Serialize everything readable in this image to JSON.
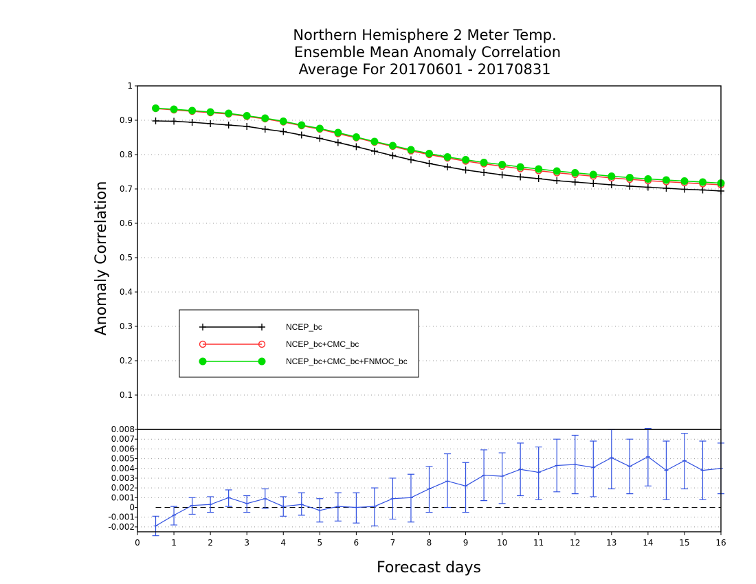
{
  "chart_data": {
    "type": "line",
    "title": [
      "Northern Hemisphere 2 Meter Temp.",
      "Ensemble Mean Anomaly Correlation",
      "Average For 20170601 - 20170831"
    ],
    "xlabel": "Forecast days",
    "ylabel": "Anomaly Correlation",
    "xlim": [
      0,
      16
    ],
    "ylim": [
      0,
      1
    ],
    "grid": "dotted-horizontal",
    "legend_position": "lower-left",
    "x_ticks": [
      "0",
      "1",
      "2",
      "3",
      "4",
      "5",
      "6",
      "7",
      "8",
      "9",
      "10",
      "11",
      "12",
      "13",
      "14",
      "15",
      "16"
    ],
    "y_ticks": [
      "0.1",
      "0.2",
      "0.3",
      "0.4",
      "0.5",
      "0.6",
      "0.7",
      "0.8",
      "0.9",
      "1"
    ],
    "x": [
      0.5,
      1,
      1.5,
      2,
      2.5,
      3,
      3.5,
      4,
      4.5,
      5,
      5.5,
      6,
      6.5,
      7,
      7.5,
      8,
      8.5,
      9,
      9.5,
      10,
      10.5,
      11,
      11.5,
      12,
      12.5,
      13,
      13.5,
      14,
      14.5,
      15,
      15.5,
      16
    ],
    "series": [
      {
        "name": "NCEP_bc",
        "color": "#000000",
        "marker": "plus",
        "values": [
          0.898,
          0.897,
          0.894,
          0.89,
          0.886,
          0.882,
          0.874,
          0.867,
          0.857,
          0.847,
          0.835,
          0.823,
          0.81,
          0.797,
          0.785,
          0.774,
          0.764,
          0.755,
          0.748,
          0.741,
          0.735,
          0.73,
          0.724,
          0.72,
          0.716,
          0.712,
          0.708,
          0.705,
          0.702,
          0.699,
          0.697,
          0.694
        ]
      },
      {
        "name": "NCEP_bc+CMC_bc",
        "color": "#ff3030",
        "marker": "open-circle",
        "values": [
          0.934,
          0.93,
          0.926,
          0.922,
          0.918,
          0.911,
          0.904,
          0.895,
          0.884,
          0.874,
          0.861,
          0.849,
          0.836,
          0.824,
          0.811,
          0.8,
          0.79,
          0.781,
          0.773,
          0.766,
          0.759,
          0.753,
          0.747,
          0.742,
          0.737,
          0.732,
          0.728,
          0.724,
          0.721,
          0.718,
          0.715,
          0.712
        ]
      },
      {
        "name": "NCEP_bc+CMC_bc+FNMOC_bc",
        "color": "#00dd00",
        "marker": "filled-circle",
        "values": [
          0.935,
          0.932,
          0.928,
          0.924,
          0.92,
          0.913,
          0.906,
          0.897,
          0.886,
          0.876,
          0.864,
          0.851,
          0.838,
          0.826,
          0.814,
          0.803,
          0.793,
          0.785,
          0.777,
          0.771,
          0.764,
          0.758,
          0.752,
          0.747,
          0.742,
          0.737,
          0.733,
          0.729,
          0.726,
          0.723,
          0.72,
          0.717
        ]
      }
    ],
    "difference_panel": {
      "color": "#3050e0",
      "ylim": [
        -0.0025,
        0.008
      ],
      "y_ticks": [
        "-0.002",
        "-0.001",
        "0",
        "0.001",
        "0.002",
        "0.003",
        "0.004",
        "0.005",
        "0.006",
        "0.007",
        "0.008"
      ],
      "zero_line": "dashed",
      "values": [
        -0.0019,
        -0.0008,
        0.0002,
        0.0003,
        0.001,
        0.0004,
        0.0009,
        0.0001,
        0.0003,
        -0.0003,
        0.0001,
        0.0,
        0.0001,
        0.0009,
        0.001,
        0.0019,
        0.0027,
        0.0022,
        0.0033,
        0.0032,
        0.0039,
        0.0036,
        0.0043,
        0.0044,
        0.0041,
        0.0051,
        0.0042,
        0.0052,
        0.0038,
        0.0048,
        0.0038,
        0.004
      ],
      "err_low": [
        -0.0029,
        -0.0018,
        -0.0007,
        -0.0005,
        0.0001,
        -0.0005,
        -0.0001,
        -0.0009,
        -0.0008,
        -0.0015,
        -0.0014,
        -0.0016,
        -0.0019,
        -0.0012,
        -0.0015,
        -0.0005,
        0.0,
        -0.0005,
        0.0007,
        0.0004,
        0.0012,
        0.0008,
        0.0016,
        0.0014,
        0.0011,
        0.0019,
        0.0014,
        0.0022,
        0.0008,
        0.0019,
        0.0008,
        0.0014
      ],
      "err_high": [
        -0.0009,
        0.0001,
        0.001,
        0.0011,
        0.0018,
        0.0012,
        0.0019,
        0.0011,
        0.0015,
        0.0009,
        0.0015,
        0.0015,
        0.002,
        0.003,
        0.0034,
        0.0042,
        0.0055,
        0.0046,
        0.0059,
        0.0056,
        0.0066,
        0.0062,
        0.007,
        0.0074,
        0.0068,
        0.008,
        0.007,
        0.0081,
        0.0068,
        0.0076,
        0.0068,
        0.0066
      ]
    }
  }
}
